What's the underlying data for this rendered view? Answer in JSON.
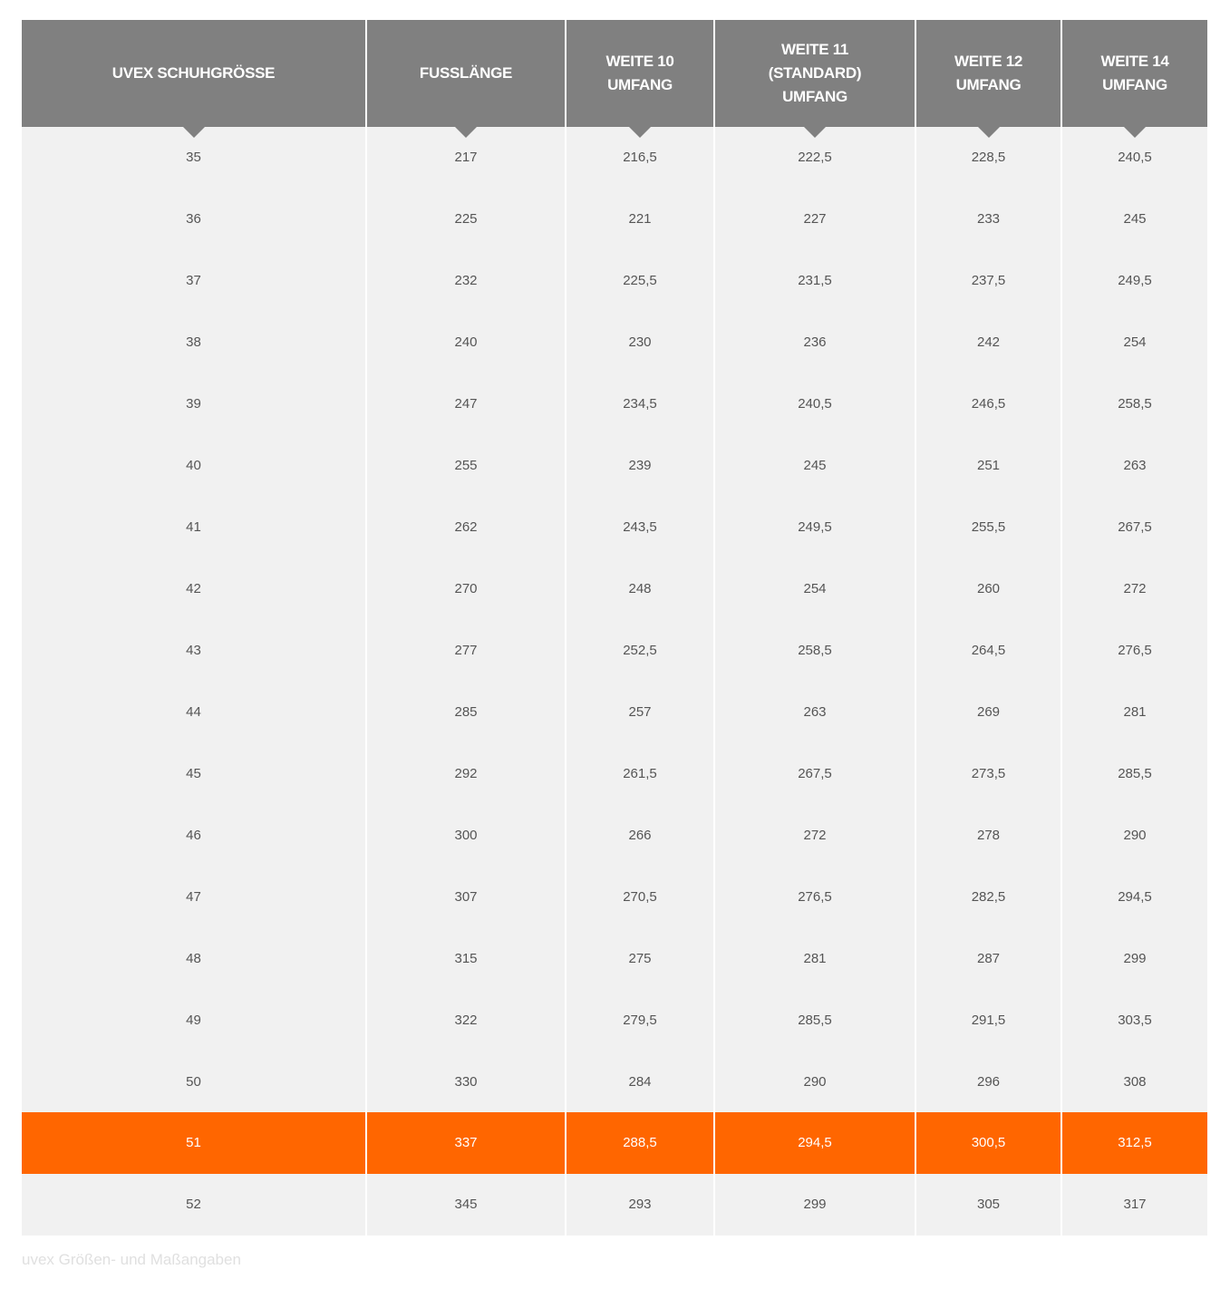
{
  "table": {
    "headers": [
      "UVEX SCHUHGRÖSSE",
      "FUSSLÄNGE",
      "WEITE 10\nUMFANG",
      "WEITE 11\n(STANDARD)\nUMFANG",
      "WEITE 12\nUMFANG",
      "WEITE 14\nUMFANG"
    ],
    "highlight_row": "51",
    "highlight_color": "#ff6600",
    "header_color": "#808080",
    "rows": [
      [
        "35",
        "217",
        "216,5",
        "222,5",
        "228,5",
        "240,5"
      ],
      [
        "36",
        "225",
        "221",
        "227",
        "233",
        "245"
      ],
      [
        "37",
        "232",
        "225,5",
        "231,5",
        "237,5",
        "249,5"
      ],
      [
        "38",
        "240",
        "230",
        "236",
        "242",
        "254"
      ],
      [
        "39",
        "247",
        "234,5",
        "240,5",
        "246,5",
        "258,5"
      ],
      [
        "40",
        "255",
        "239",
        "245",
        "251",
        "263"
      ],
      [
        "41",
        "262",
        "243,5",
        "249,5",
        "255,5",
        "267,5"
      ],
      [
        "42",
        "270",
        "248",
        "254",
        "260",
        "272"
      ],
      [
        "43",
        "277",
        "252,5",
        "258,5",
        "264,5",
        "276,5"
      ],
      [
        "44",
        "285",
        "257",
        "263",
        "269",
        "281"
      ],
      [
        "45",
        "292",
        "261,5",
        "267,5",
        "273,5",
        "285,5"
      ],
      [
        "46",
        "300",
        "266",
        "272",
        "278",
        "290"
      ],
      [
        "47",
        "307",
        "270,5",
        "276,5",
        "282,5",
        "294,5"
      ],
      [
        "48",
        "315",
        "275",
        "281",
        "287",
        "299"
      ],
      [
        "49",
        "322",
        "279,5",
        "285,5",
        "291,5",
        "303,5"
      ],
      [
        "50",
        "330",
        "284",
        "290",
        "296",
        "308"
      ],
      [
        "51",
        "337",
        "288,5",
        "294,5",
        "300,5",
        "312,5"
      ],
      [
        "52",
        "345",
        "293",
        "299",
        "305",
        "317"
      ]
    ]
  },
  "caption": "uvex Größen- und Maßangaben"
}
